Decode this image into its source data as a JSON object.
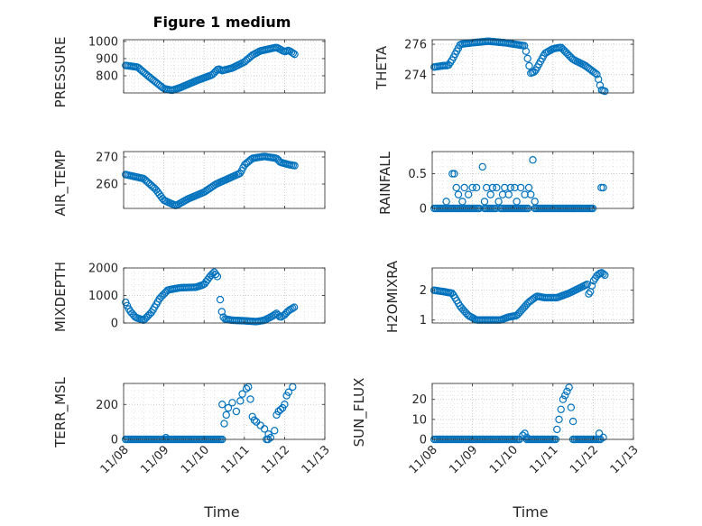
{
  "figure": {
    "title": "Figure 1 medium",
    "marker_color": "#0072BD",
    "axis_color": "#262626",
    "grid_color": "#b0b0b0"
  },
  "chart_data": [
    {
      "type": "scatter",
      "name": "pressure",
      "ylabel": "PRESSURE",
      "title": "Figure 1 medium",
      "xlim": [
        0,
        5
      ],
      "ylim": [
        700,
        1010
      ],
      "ytick_values": [
        800,
        900,
        1000
      ],
      "ytick_labels": [
        "800",
        "900",
        "1000"
      ],
      "x_range": [
        0.05,
        4.25
      ],
      "keypoints": [
        [
          0.05,
          860
        ],
        [
          0.35,
          850
        ],
        [
          0.6,
          800
        ],
        [
          1.0,
          725
        ],
        [
          1.2,
          715
        ],
        [
          1.4,
          730
        ],
        [
          1.8,
          770
        ],
        [
          2.2,
          805
        ],
        [
          2.35,
          840
        ],
        [
          2.45,
          830
        ],
        [
          2.7,
          845
        ],
        [
          3.0,
          880
        ],
        [
          3.2,
          920
        ],
        [
          3.4,
          945
        ],
        [
          3.8,
          965
        ],
        [
          4.0,
          940
        ],
        [
          4.1,
          948
        ],
        [
          4.25,
          925
        ]
      ]
    },
    {
      "type": "scatter",
      "name": "theta",
      "ylabel": "THETA",
      "xlim": [
        0,
        5
      ],
      "ylim": [
        272.8,
        276.3
      ],
      "ytick_values": [
        274,
        276
      ],
      "ytick_labels": [
        "274",
        "276"
      ],
      "x_range": [
        0.05,
        4.3
      ],
      "keypoints": [
        [
          0.05,
          274.5
        ],
        [
          0.3,
          274.6
        ],
        [
          0.4,
          274.6
        ],
        [
          0.5,
          275.0
        ],
        [
          0.7,
          276.0
        ],
        [
          1.0,
          276.1
        ],
        [
          1.4,
          276.2
        ],
        [
          1.8,
          276.1
        ],
        [
          2.3,
          275.9
        ],
        [
          2.45,
          274.1
        ],
        [
          2.55,
          274.2
        ],
        [
          2.8,
          275.4
        ],
        [
          3.0,
          275.7
        ],
        [
          3.2,
          275.8
        ],
        [
          3.5,
          275.0
        ],
        [
          3.8,
          274.6
        ],
        [
          4.1,
          274.0
        ],
        [
          4.2,
          273.0
        ],
        [
          4.3,
          272.9
        ]
      ]
    },
    {
      "type": "scatter",
      "name": "air_temp",
      "ylabel": "AIR_TEMP",
      "xlim": [
        0,
        5
      ],
      "ylim": [
        251,
        272
      ],
      "ytick_values": [
        260,
        270
      ],
      "ytick_labels": [
        "260",
        "270"
      ],
      "x_range": [
        0.05,
        4.25
      ],
      "keypoints": [
        [
          0.05,
          263.5
        ],
        [
          0.5,
          262
        ],
        [
          0.8,
          258
        ],
        [
          1.0,
          254
        ],
        [
          1.3,
          252
        ],
        [
          1.6,
          254.5
        ],
        [
          2.0,
          257
        ],
        [
          2.3,
          260
        ],
        [
          2.6,
          262
        ],
        [
          2.9,
          264
        ],
        [
          3.0,
          267
        ],
        [
          3.2,
          269.5
        ],
        [
          3.5,
          270.2
        ],
        [
          3.8,
          269.5
        ],
        [
          3.9,
          268
        ],
        [
          4.1,
          267.2
        ],
        [
          4.25,
          266.8
        ]
      ]
    },
    {
      "type": "scatter",
      "name": "rainfall",
      "ylabel": "RAINFALL",
      "xlim": [
        0,
        5
      ],
      "ylim": [
        0,
        0.82
      ],
      "ytick_values": [
        0,
        0.5
      ],
      "ytick_labels": [
        "0",
        "0.5"
      ],
      "background_value": 0,
      "baseline_segments": [
        [
          0.05,
          1.2
        ],
        [
          1.3,
          1.6
        ],
        [
          1.7,
          2.4
        ],
        [
          2.55,
          4.0
        ]
      ],
      "points": [
        [
          0.35,
          0.1
        ],
        [
          0.5,
          0.5
        ],
        [
          0.55,
          0.5
        ],
        [
          0.6,
          0.3
        ],
        [
          0.65,
          0.2
        ],
        [
          0.75,
          0.1
        ],
        [
          0.8,
          0.3
        ],
        [
          0.9,
          0.2
        ],
        [
          1.0,
          0.3
        ],
        [
          1.1,
          0.3
        ],
        [
          1.25,
          0.6
        ],
        [
          1.3,
          0.1
        ],
        [
          1.35,
          0.3
        ],
        [
          1.45,
          0.2
        ],
        [
          1.5,
          0.3
        ],
        [
          1.6,
          0.3
        ],
        [
          1.65,
          0.1
        ],
        [
          1.75,
          0.2
        ],
        [
          1.8,
          0.3
        ],
        [
          1.9,
          0.2
        ],
        [
          1.95,
          0.3
        ],
        [
          2.05,
          0.3
        ],
        [
          2.1,
          0.1
        ],
        [
          2.2,
          0.3
        ],
        [
          2.3,
          0.2
        ],
        [
          2.4,
          0.3
        ],
        [
          2.45,
          0.2
        ],
        [
          2.5,
          0.7
        ],
        [
          2.55,
          0.1
        ],
        [
          4.2,
          0.3
        ],
        [
          4.25,
          0.3
        ]
      ]
    },
    {
      "type": "scatter",
      "name": "mixdepth",
      "ylabel": "MIXDEPTH",
      "xlim": [
        0,
        5
      ],
      "ylim": [
        0,
        2000
      ],
      "ytick_values": [
        0,
        1000,
        2000
      ],
      "ytick_labels": [
        "0",
        "1000",
        "2000"
      ],
      "segments": [
        {
          "x_range": [
            0.05,
            2.35
          ],
          "keypoints": [
            [
              0.05,
              750
            ],
            [
              0.15,
              450
            ],
            [
              0.3,
              200
            ],
            [
              0.5,
              100
            ],
            [
              0.7,
              400
            ],
            [
              0.9,
              900
            ],
            [
              1.1,
              1200
            ],
            [
              1.4,
              1280
            ],
            [
              1.8,
              1300
            ],
            [
              2.0,
              1400
            ],
            [
              2.15,
              1700
            ],
            [
              2.25,
              1850
            ],
            [
              2.35,
              1650
            ]
          ]
        },
        {
          "x_range": [
            2.4,
            4.25
          ],
          "keypoints": [
            [
              2.4,
              850
            ],
            [
              2.45,
              300
            ],
            [
              2.5,
              150
            ],
            [
              2.7,
              100
            ],
            [
              3.0,
              80
            ],
            [
              3.3,
              50
            ],
            [
              3.5,
              100
            ],
            [
              3.7,
              250
            ],
            [
              3.8,
              350
            ],
            [
              3.9,
              200
            ],
            [
              4.0,
              300
            ],
            [
              4.1,
              450
            ],
            [
              4.25,
              580
            ]
          ]
        }
      ]
    },
    {
      "type": "scatter",
      "name": "h2omixra",
      "ylabel": "H2OMIXRA",
      "xlim": [
        0,
        5
      ],
      "ylim": [
        0.9,
        2.75
      ],
      "ytick_values": [
        1,
        2
      ],
      "ytick_labels": [
        "1",
        "2"
      ],
      "x_range": [
        0.05,
        4.3
      ],
      "keypoints": [
        [
          0.05,
          2.0
        ],
        [
          0.3,
          1.95
        ],
        [
          0.5,
          1.9
        ],
        [
          0.7,
          1.45
        ],
        [
          0.9,
          1.15
        ],
        [
          1.1,
          1.0
        ],
        [
          1.5,
          1.0
        ],
        [
          1.7,
          1.0
        ],
        [
          1.9,
          1.1
        ],
        [
          2.1,
          1.15
        ],
        [
          2.4,
          1.6
        ],
        [
          2.6,
          1.8
        ],
        [
          2.8,
          1.75
        ],
        [
          3.1,
          1.75
        ],
        [
          3.4,
          1.9
        ],
        [
          3.7,
          2.1
        ],
        [
          3.85,
          2.2
        ],
        [
          3.9,
          1.8
        ],
        [
          4.0,
          2.3
        ],
        [
          4.1,
          2.5
        ],
        [
          4.2,
          2.6
        ],
        [
          4.3,
          2.5
        ]
      ]
    },
    {
      "type": "scatter",
      "name": "terr_msl",
      "ylabel": "TERR_MSL",
      "xlim": [
        0,
        5
      ],
      "ylim": [
        0,
        320
      ],
      "ytick_values": [
        0,
        200
      ],
      "ytick_labels": [
        "0",
        "200"
      ],
      "background_value": 0,
      "baseline_segments": [
        [
          0.05,
          2.45
        ],
        [
          3.55,
          3.6
        ]
      ],
      "points": [
        [
          1.05,
          10
        ],
        [
          2.45,
          200
        ],
        [
          2.5,
          90
        ],
        [
          2.55,
          140
        ],
        [
          2.6,
          180
        ],
        [
          2.7,
          210
        ],
        [
          2.8,
          160
        ],
        [
          2.9,
          220
        ],
        [
          2.95,
          260
        ],
        [
          3.05,
          290
        ],
        [
          3.1,
          300
        ],
        [
          3.15,
          230
        ],
        [
          3.2,
          130
        ],
        [
          3.25,
          110
        ],
        [
          3.3,
          100
        ],
        [
          3.4,
          80
        ],
        [
          3.5,
          60
        ],
        [
          3.6,
          30
        ],
        [
          3.65,
          10
        ],
        [
          3.75,
          50
        ],
        [
          3.8,
          140
        ],
        [
          3.85,
          160
        ],
        [
          3.9,
          170
        ],
        [
          3.95,
          180
        ],
        [
          4.0,
          200
        ],
        [
          4.05,
          250
        ],
        [
          4.1,
          270
        ],
        [
          4.2,
          300
        ]
      ]
    },
    {
      "type": "scatter",
      "name": "sun_flux",
      "ylabel": "SUN_FLUX",
      "xlim": [
        0,
        5
      ],
      "ylim": [
        0,
        28
      ],
      "ytick_values": [
        0,
        10,
        20
      ],
      "ytick_labels": [
        "0",
        "10",
        "20"
      ],
      "background_value": 0,
      "baseline_segments": [
        [
          0.05,
          2.2
        ],
        [
          2.35,
          3.1
        ],
        [
          3.5,
          4.2
        ]
      ],
      "points": [
        [
          2.25,
          2
        ],
        [
          2.3,
          3
        ],
        [
          2.35,
          1
        ],
        [
          3.1,
          5
        ],
        [
          3.15,
          10
        ],
        [
          3.2,
          15
        ],
        [
          3.25,
          20
        ],
        [
          3.3,
          22
        ],
        [
          3.35,
          24
        ],
        [
          3.4,
          26
        ],
        [
          3.45,
          16
        ],
        [
          3.5,
          9
        ],
        [
          4.15,
          3
        ],
        [
          4.25,
          1
        ]
      ]
    }
  ],
  "x_axis": {
    "tick_labels": [
      "11/08",
      "11/09",
      "11/10",
      "11/11",
      "11/12",
      "11/13"
    ],
    "xlabel": "Time"
  }
}
